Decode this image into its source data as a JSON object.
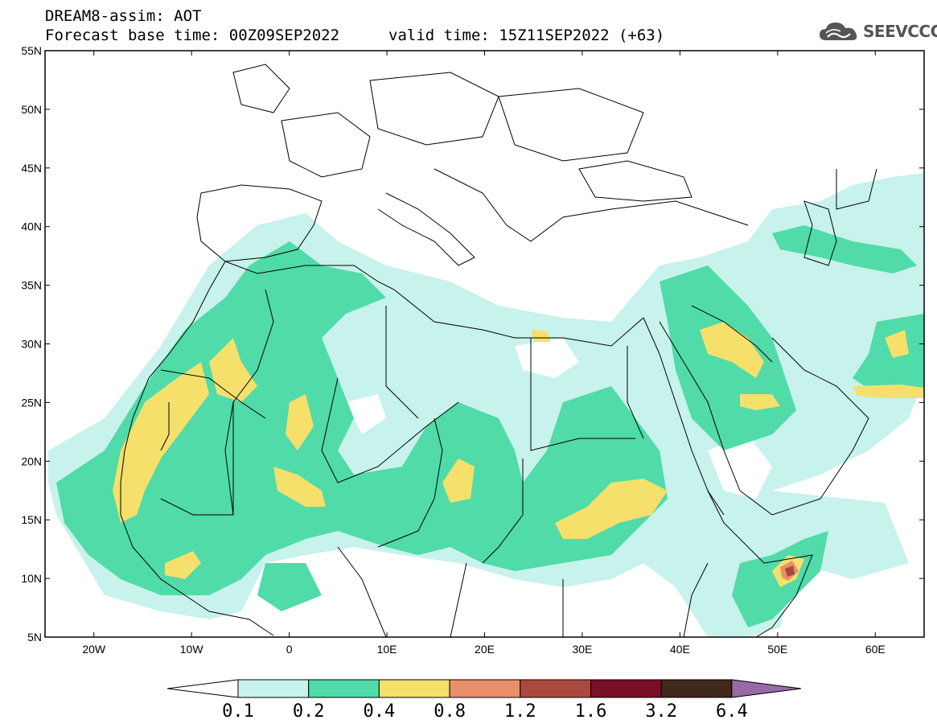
{
  "title_line1": "DREAM8-assim: AOT",
  "title_base": "Forecast base time: 00Z09SEP2022",
  "title_valid": "valid time: 15Z11SEP2022 (+63)",
  "logo_text": "SEEVCCC",
  "map": {
    "lon_range": [
      -25,
      65
    ],
    "lat_range": [
      5,
      55
    ],
    "lat_labels": [
      "55N",
      "50N",
      "45N",
      "40N",
      "35N",
      "30N",
      "25N",
      "20N",
      "15N",
      "10N",
      "5N"
    ],
    "lon_labels": [
      "20W",
      "10W",
      "0",
      "10E",
      "20E",
      "30E",
      "40E",
      "50E",
      "60E"
    ],
    "colors": {
      "c1": "#c8f2ec",
      "c2": "#50dba8",
      "c3": "#f5e06c",
      "c4": "#e9906a",
      "c5": "#aa4a3e",
      "c6": "#7a0f28",
      "c7": "#40281a",
      "c8": "#9a6aa8"
    }
  },
  "colorbar": {
    "labels": [
      "0.1",
      "0.2",
      "0.4",
      "0.8",
      "1.2",
      "1.6",
      "3.2",
      "6.4"
    ]
  }
}
